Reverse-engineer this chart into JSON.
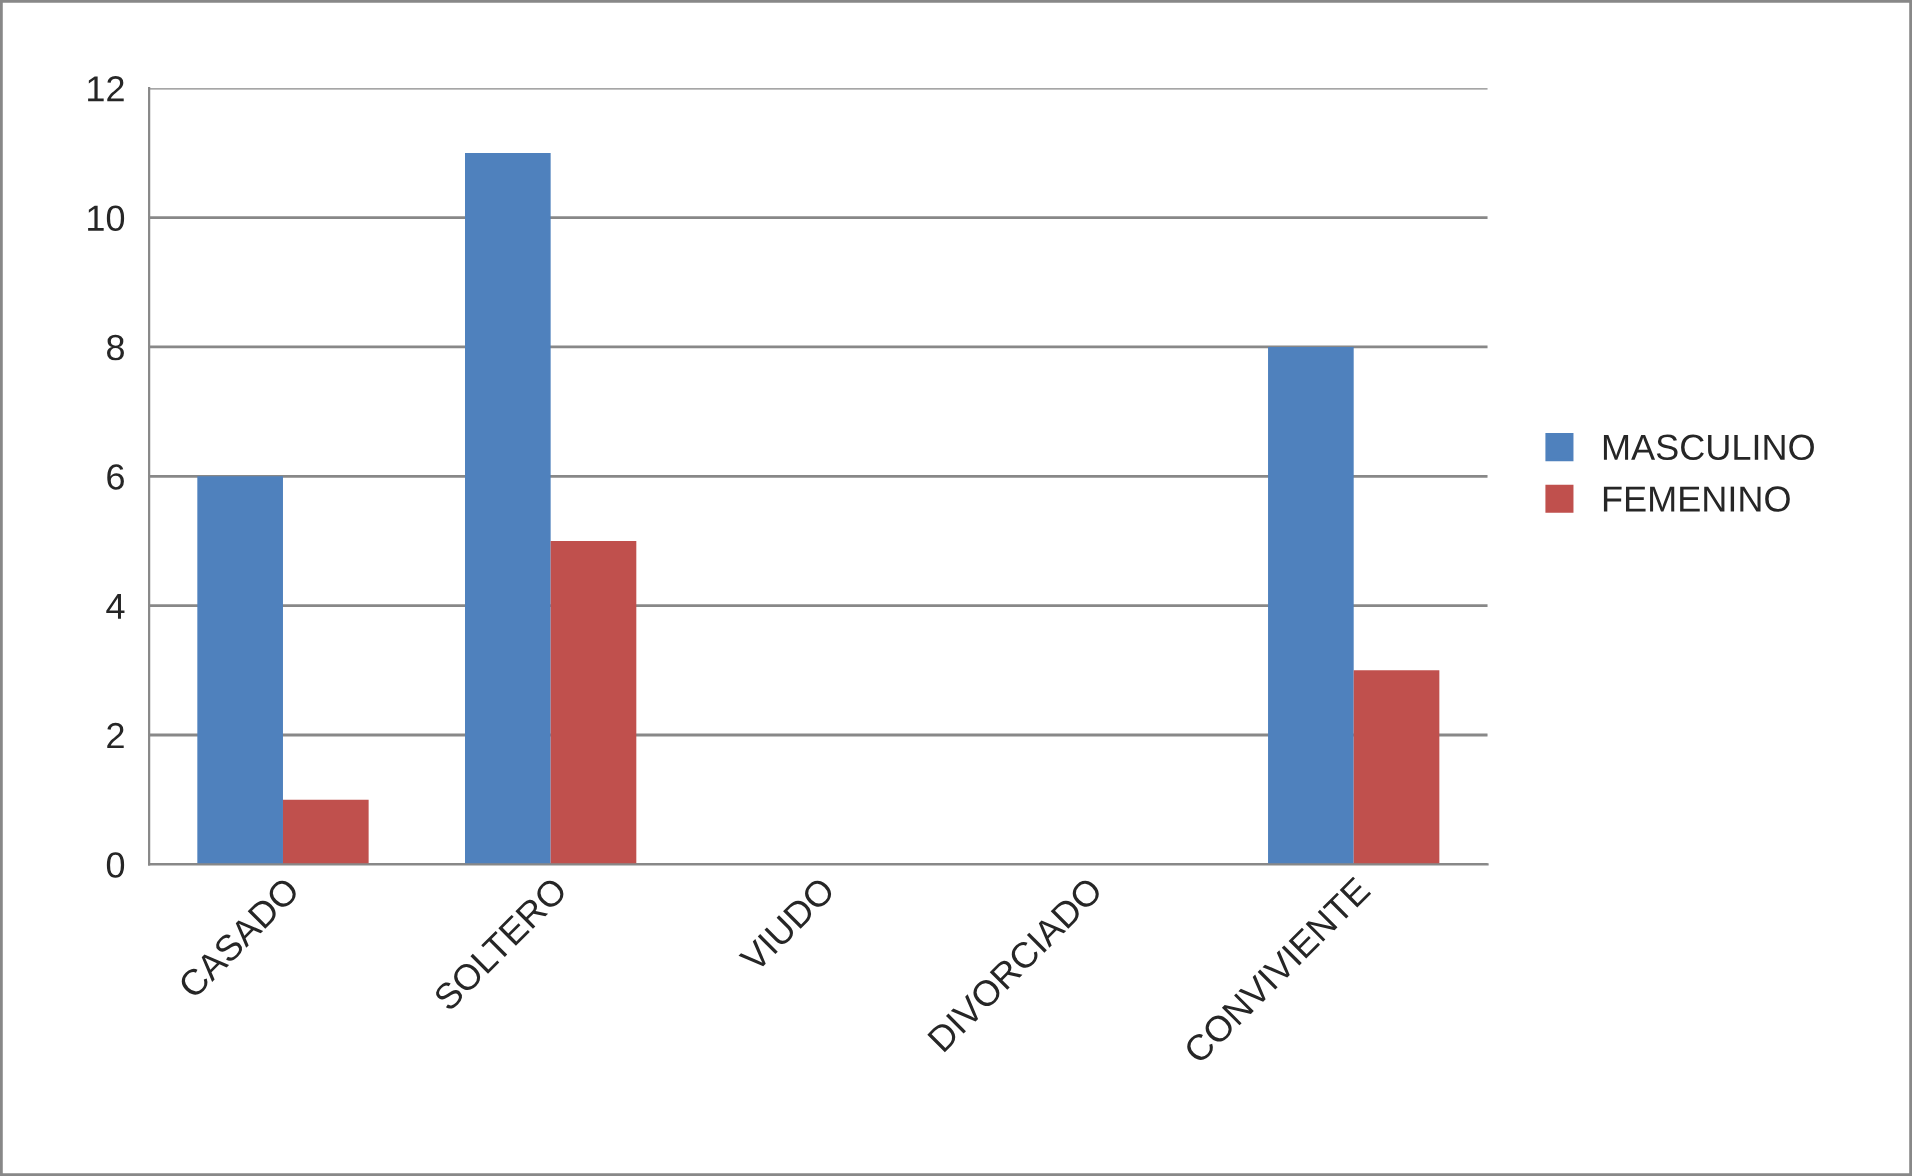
{
  "chart_data": {
    "type": "bar",
    "categories": [
      "CASADO",
      "SOLTERO",
      "VIUDO",
      "DIVORCIADO",
      "CONVIVIENTE"
    ],
    "series": [
      {
        "name": "MASCULINO",
        "color": "#4f81bd",
        "values": [
          6,
          11,
          0,
          0,
          8
        ]
      },
      {
        "name": "FEMENINO",
        "color": "#c0504d",
        "values": [
          1,
          5,
          0,
          0,
          3
        ]
      }
    ],
    "ylim": [
      0,
      12
    ],
    "yticks": [
      0,
      2,
      4,
      6,
      8,
      10,
      12
    ],
    "grid": "y",
    "legend": "right"
  }
}
